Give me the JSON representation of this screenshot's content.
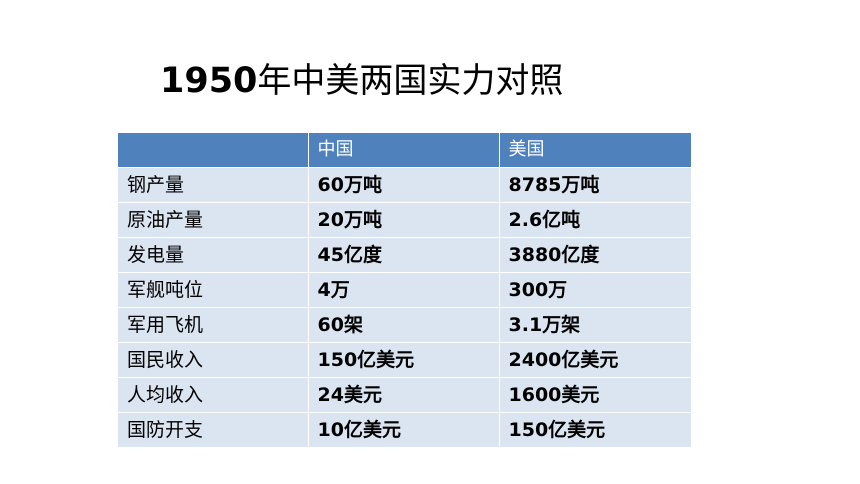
{
  "title": {
    "year": "1950",
    "text": "年中美两国实力对照"
  },
  "table": {
    "headers": [
      "",
      "中国",
      "美国"
    ],
    "rows": [
      {
        "metric": "钢产量",
        "china": "60万吨",
        "usa": "8785万吨"
      },
      {
        "metric": "原油产量",
        "china": "20万吨",
        "usa": "2.6亿吨"
      },
      {
        "metric": "发电量",
        "china": "45亿度",
        "usa": "3880亿度"
      },
      {
        "metric": "军舰吨位",
        "china": "4万",
        "usa": "300万"
      },
      {
        "metric": "军用飞机",
        "china": "60架",
        "usa": "3.1万架"
      },
      {
        "metric": "国民收入",
        "china": "150亿美元",
        "usa": "2400亿美元"
      },
      {
        "metric": "人均收入",
        "china": "24美元",
        "usa": "1600美元"
      },
      {
        "metric": "国防开支",
        "china": "10亿美元",
        "usa": "150亿美元"
      }
    ]
  },
  "colors": {
    "header_fill": "#4f81bd",
    "row_fill": "#dbe5f1",
    "header_text": "#ffffff"
  }
}
